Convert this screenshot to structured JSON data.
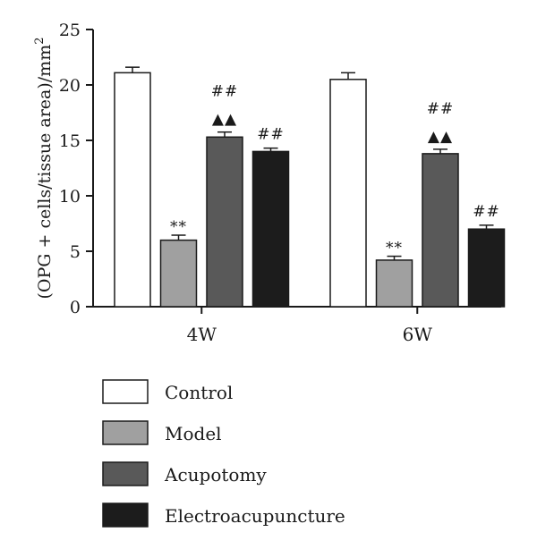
{
  "chart_data": {
    "type": "bar",
    "title": "",
    "xlabel": "",
    "ylabel": "(OPG + cells/tissue area)/mm",
    "ylabel_sup": "2",
    "ylim": [
      0,
      25
    ],
    "yticks": [
      0,
      5,
      10,
      15,
      20,
      25
    ],
    "categories": [
      "4W",
      "6W"
    ],
    "series": [
      {
        "name": "Control",
        "values": [
          21.1,
          20.5
        ],
        "errors": [
          0.5,
          0.6
        ],
        "color": "#ffffff",
        "annotations": [
          "",
          ""
        ]
      },
      {
        "name": "Model",
        "values": [
          6.0,
          4.2
        ],
        "errors": [
          0.45,
          0.35
        ],
        "color": "#a0a0a0",
        "annotations": [
          "**",
          "**"
        ]
      },
      {
        "name": "Acupotomy",
        "values": [
          15.3,
          13.8
        ],
        "errors": [
          0.45,
          0.4
        ],
        "color": "#595959",
        "annotations": [
          "▲▲",
          "▲▲"
        ]
      },
      {
        "name": "Electroacupuncture",
        "values": [
          14.0,
          7.0
        ],
        "errors": [
          0.3,
          0.35
        ],
        "color": "#1c1c1c",
        "annotations": [
          "##",
          "##"
        ]
      }
    ],
    "extra_annotations": [
      {
        "series": 2,
        "category": 0,
        "text": "##"
      },
      {
        "series": 2,
        "category": 1,
        "text": "##"
      }
    ],
    "legend_placement": "bottom-left",
    "grid": false
  }
}
